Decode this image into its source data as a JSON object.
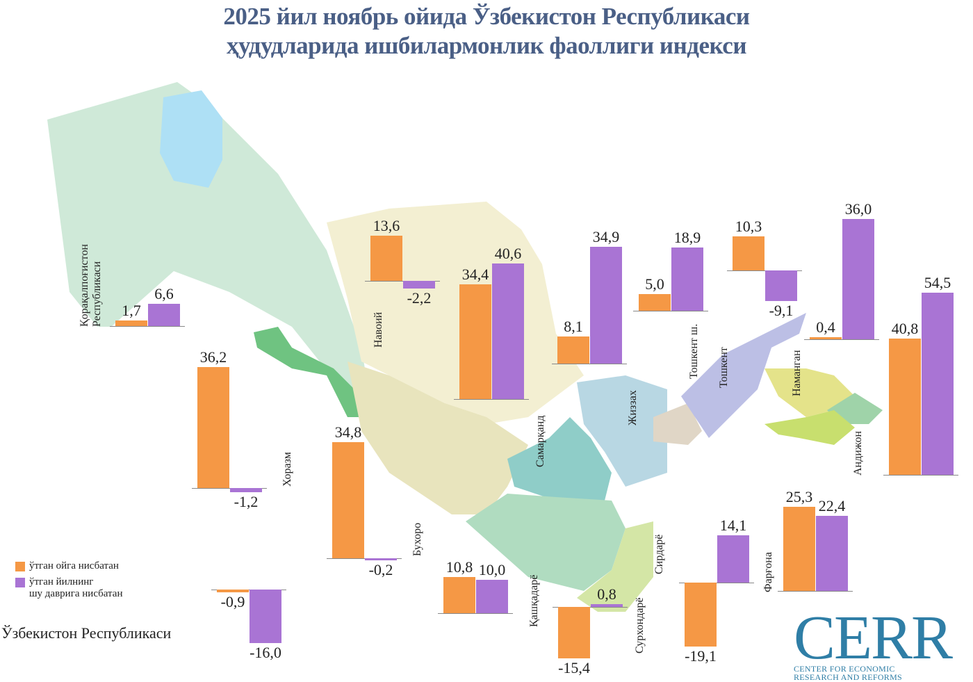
{
  "title_line1": "2025 йил ноябрь ойида Ўзбекистон Республикаси",
  "title_line2": "ҳудудларида ишбилармонлик фаоллиги индекси",
  "colors": {
    "prev_month": "#f59845",
    "prev_year": "#a974d4",
    "title": "#4a5f86",
    "logo": "#2f7ea6"
  },
  "legend": {
    "prev_month": "ўтган ойга нисбатан",
    "prev_year_1": "ўтган йилнинг",
    "prev_year_2": "шу даврига нисбатан"
  },
  "country": {
    "name": "Ўзбекистон Республикаси",
    "prev_month": "-0,9",
    "prev_year": "-16,0"
  },
  "logo": {
    "text": "CERR",
    "line1": "CENTER FOR ECONOMIC",
    "line2": "RESEARCH AND REFORMS"
  },
  "chart_data": {
    "type": "bar",
    "title": "2025 йил ноябрь ойида Ўзбекистон Республикаси ҳудудларида ишбилармонлик фаоллиги индекси",
    "series": [
      {
        "name": "ўтган ойга нисбатан"
      },
      {
        "name": "ўтган йилнинг шу даврига нисбатан"
      }
    ],
    "regions": [
      {
        "name": "Қорақалпоғистон Республикаси",
        "name1": "Қорақалпоғистон",
        "name2": "Республикаси",
        "values": [
          1.7,
          6.6
        ],
        "labels": [
          "1,7",
          "6,6"
        ]
      },
      {
        "name": "Навоий",
        "values": [
          13.6,
          -2.2
        ],
        "labels": [
          "13,6",
          "-2,2"
        ]
      },
      {
        "name": "Самарқанд",
        "values": [
          34.4,
          40.6
        ],
        "labels": [
          "34,4",
          "40,6"
        ]
      },
      {
        "name": "Жиззах",
        "values": [
          8.1,
          34.9
        ],
        "labels": [
          "8,1",
          "34,9"
        ]
      },
      {
        "name": "Тошкент ш.",
        "values": [
          5.0,
          18.9
        ],
        "labels": [
          "5,0",
          "18,9"
        ]
      },
      {
        "name": "Тошкент",
        "values": [
          10.3,
          -9.1
        ],
        "labels": [
          "10,3",
          "-9,1"
        ]
      },
      {
        "name": "Наманган",
        "values": [
          0.4,
          36.0
        ],
        "labels": [
          "0,4",
          "36,0"
        ]
      },
      {
        "name": "Андижон",
        "values": [
          40.8,
          54.5
        ],
        "labels": [
          "40,8",
          "54,5"
        ]
      },
      {
        "name": "Фарғона",
        "values": [
          25.3,
          22.4
        ],
        "labels": [
          "25,3",
          "22,4"
        ]
      },
      {
        "name": "Хоразм",
        "values": [
          36.2,
          -1.2
        ],
        "labels": [
          "36,2",
          "-1,2"
        ]
      },
      {
        "name": "Бухоро",
        "values": [
          34.8,
          -0.2
        ],
        "labels": [
          "34,8",
          "-0,2"
        ]
      },
      {
        "name": "Қашқадарё",
        "values": [
          10.8,
          10.0
        ],
        "labels": [
          "10,8",
          "10,0"
        ]
      },
      {
        "name": "Сурхондарё",
        "values": [
          -15.4,
          0.8
        ],
        "labels": [
          "-15,4",
          "0,8"
        ]
      },
      {
        "name": "Сирдарё",
        "values": [
          -19.1,
          14.1
        ],
        "labels": [
          "-19,1",
          "14,1"
        ]
      },
      {
        "name": "Ўзбекистон Республикаси",
        "values": [
          -0.9,
          -16.0
        ],
        "labels": [
          "-0,9",
          "-16,0"
        ]
      }
    ]
  }
}
